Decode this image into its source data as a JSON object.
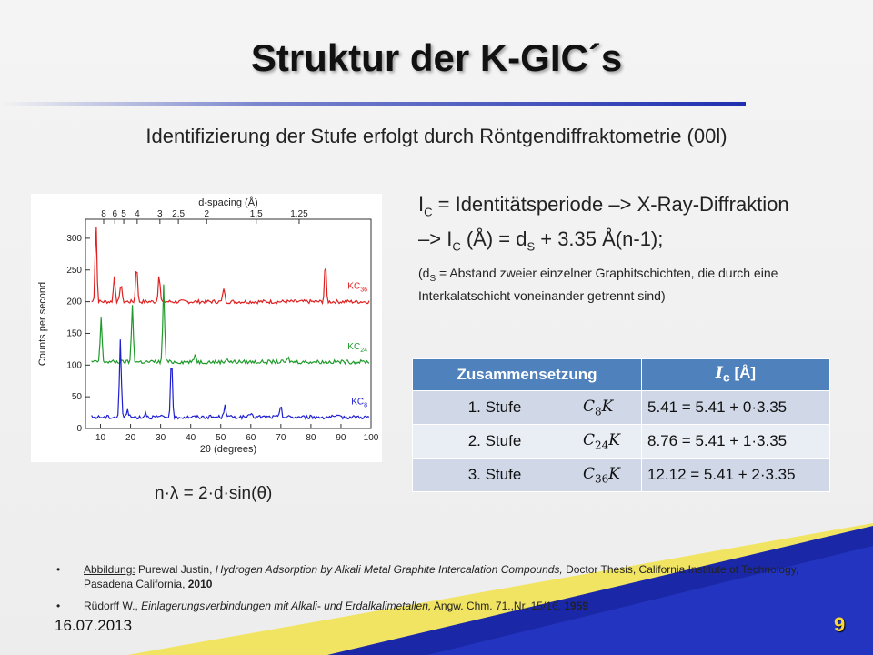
{
  "slide": {
    "title": "Struktur der K-GIC´s",
    "subtitle": "Identifizierung der Stufe erfolgt durch Röntgendiffraktometrie (00l)",
    "formula": "n·λ = 2·d·sin(θ)",
    "date": "16.07.2013",
    "page": "9"
  },
  "definition": {
    "ic_sym": "I",
    "ic_sub": "C",
    "line1_rest": " = Identitätsperiode –> X-Ray-Diffraktion",
    "line2_pre": "–> I",
    "line2_sub": "C",
    "line2_mid": " (Å) = d",
    "line2_sub2": "S",
    "line2_post": " + 3.35 Å(n-1);",
    "note_pre": "(d",
    "note_sub": "S",
    "note_post": " = Abstand zweier einzelner Graphitschichten, die durch eine Interkalatschicht voneinander getrennt sind)"
  },
  "table": {
    "header_composition": "Zusammensetzung",
    "header_ic": "I",
    "header_ic_sub": "c",
    "header_ic_unit": " [Å]",
    "rows": [
      {
        "stage": "1. Stufe",
        "formula_c": "C",
        "formula_sub": "8",
        "formula_k": "K",
        "value": "5.41 = 5.41 + 0·3.35"
      },
      {
        "stage": "2. Stufe",
        "formula_c": "C",
        "formula_sub": "24",
        "formula_k": "K",
        "value": "8.76 = 5.41 + 1·3.35"
      },
      {
        "stage": "3. Stufe",
        "formula_c": "C",
        "formula_sub": "36",
        "formula_k": "K",
        "value": "12.12 = 5.41 + 2·3.35"
      }
    ]
  },
  "references": [
    {
      "label": "Abbildung:",
      "text_pre": " Purewal Justin, ",
      "title": "Hydrogen Adsorption by Alkali Metal Graphite Intercalation Compounds,",
      "text_post": " Doctor Thesis, California Institute of Technology, Pasadena California, ",
      "year": "2010"
    },
    {
      "author": "Rüdorff W., ",
      "title": "Einlagerungsverbindungen mit Alkali- und Erdalkalimetallen,",
      "text_post": " Angw. Chm. 71.,Nr. 15/16, ",
      "year": "1959"
    }
  ],
  "colors": {
    "accent_blue": "#4f81bd",
    "series_red": "#e02020",
    "series_green": "#1f9a2a",
    "series_blue": "#2020d0",
    "page_number": "#fdd835",
    "wedge_blue": "#1a28a8",
    "wedge_yellow": "#f2e24a"
  },
  "chart_data": {
    "type": "line",
    "xlabel": "2θ (degrees)",
    "ylabel": "Counts per second",
    "top_label": "d-spacing (Å)",
    "x_ticks": [
      "10",
      "20",
      "30",
      "40",
      "50",
      "60",
      "70",
      "80",
      "90",
      "100"
    ],
    "y_ticks": [
      "0",
      "50",
      "100",
      "150",
      "200",
      "250",
      "300"
    ],
    "top_ticks": [
      "8",
      "6",
      "5",
      "4",
      "3",
      "2.5",
      "2",
      "1.5",
      "1.25"
    ],
    "xlim": [
      5,
      100
    ],
    "ylim": [
      0,
      330
    ],
    "series": [
      {
        "name": "KC",
        "name_sub": "36",
        "baseline": 200,
        "peaks": [
          [
            8.5,
            325
          ],
          [
            14.6,
            240
          ],
          [
            16.8,
            230
          ],
          [
            22.0,
            260
          ],
          [
            29.5,
            245
          ],
          [
            51.0,
            222
          ],
          [
            84.8,
            262
          ]
        ]
      },
      {
        "name": "KC",
        "name_sub": "24",
        "baseline": 105,
        "peaks": [
          [
            10.2,
            175
          ],
          [
            20.6,
            195
          ],
          [
            31.0,
            225
          ],
          [
            41.5,
            118
          ],
          [
            52.0,
            112
          ],
          [
            72.5,
            111
          ]
        ]
      },
      {
        "name": "KC",
        "name_sub": "8",
        "baseline": 18,
        "peaks": [
          [
            16.6,
            140
          ],
          [
            33.6,
            110
          ],
          [
            19.0,
            32
          ],
          [
            25.0,
            26
          ],
          [
            51.4,
            40
          ],
          [
            60.0,
            26
          ],
          [
            70.0,
            38
          ]
        ]
      }
    ]
  }
}
